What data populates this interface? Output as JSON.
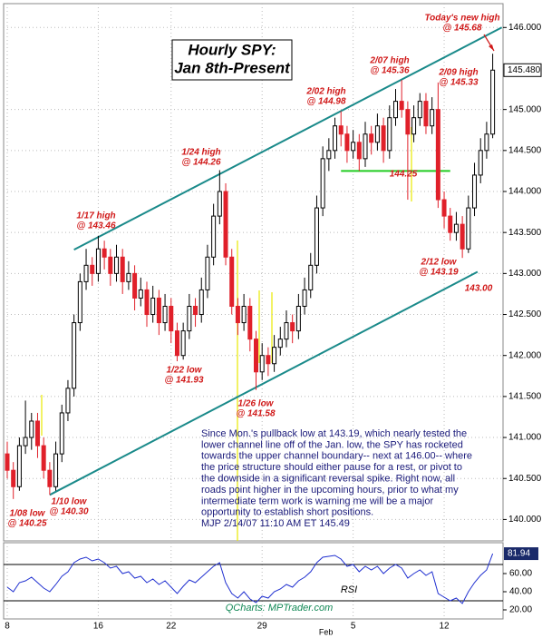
{
  "chart_data": [
    {
      "type": "candlestick",
      "title": "Hourly SPY:",
      "subtitle": "Jan 8th-Present",
      "x": [
        0,
        1,
        2,
        3,
        4,
        5,
        6,
        7,
        8,
        9,
        10,
        11,
        12,
        13,
        14,
        15,
        16,
        17,
        18,
        19,
        20,
        21,
        22,
        23,
        24,
        25,
        26,
        27,
        28,
        29,
        30,
        31,
        32,
        33,
        34,
        35,
        36,
        37,
        38,
        39,
        40,
        41,
        42,
        43,
        44,
        45,
        46,
        47,
        48,
        49,
        50,
        51,
        52,
        53,
        54,
        55,
        56,
        57,
        58,
        59,
        60,
        61,
        62,
        63,
        64,
        65,
        66,
        67,
        68,
        69,
        70,
        71,
        72,
        73,
        74,
        75,
        76,
        77,
        78,
        79,
        80
      ],
      "open": [
        140.8,
        140.6,
        140.4,
        140.9,
        141.0,
        141.2,
        140.9,
        140.6,
        140.4,
        140.8,
        141.3,
        141.6,
        142.4,
        142.9,
        143.1,
        143.0,
        143.3,
        143.2,
        143.0,
        143.2,
        142.9,
        143.0,
        142.7,
        142.8,
        142.5,
        142.7,
        142.4,
        142.6,
        142.3,
        142.0,
        142.3,
        142.6,
        142.5,
        142.8,
        143.2,
        143.7,
        144.0,
        143.2,
        142.6,
        142.4,
        142.6,
        142.2,
        141.8,
        142.0,
        141.9,
        142.1,
        142.2,
        142.4,
        142.3,
        142.6,
        142.8,
        143.1,
        143.8,
        144.4,
        144.5,
        144.8,
        144.7,
        144.5,
        144.6,
        144.4,
        144.7,
        144.6,
        144.8,
        144.5,
        144.9,
        145.1,
        145.0,
        144.7,
        144.9,
        145.1,
        144.8,
        145.0,
        143.9,
        143.7,
        143.5,
        143.6,
        143.3,
        143.8,
        144.2,
        144.5,
        144.7
      ],
      "high": [
        140.95,
        140.7,
        141.0,
        141.45,
        141.3,
        141.3,
        141.0,
        140.7,
        140.95,
        141.4,
        141.7,
        142.5,
        143.0,
        143.3,
        143.2,
        143.46,
        143.4,
        143.3,
        143.35,
        143.3,
        143.15,
        143.1,
        142.95,
        142.9,
        142.85,
        142.8,
        142.75,
        142.7,
        142.4,
        142.4,
        142.75,
        142.7,
        142.95,
        143.35,
        143.85,
        144.26,
        144.1,
        143.3,
        142.7,
        142.75,
        142.7,
        142.3,
        142.15,
        142.1,
        142.25,
        142.35,
        142.55,
        142.5,
        142.75,
        142.95,
        143.25,
        143.95,
        144.55,
        144.65,
        144.9,
        144.98,
        144.8,
        144.75,
        144.7,
        144.85,
        144.8,
        144.95,
        144.9,
        145.05,
        145.25,
        145.36,
        145.1,
        145.05,
        145.2,
        145.2,
        145.15,
        145.33,
        144.0,
        143.8,
        143.75,
        143.7,
        143.95,
        144.35,
        144.65,
        144.85,
        145.68
      ],
      "low": [
        140.5,
        140.25,
        140.35,
        140.8,
        140.85,
        140.75,
        140.5,
        140.3,
        140.35,
        140.7,
        141.2,
        141.5,
        142.3,
        142.8,
        142.85,
        142.9,
        143.05,
        142.85,
        142.9,
        142.75,
        142.8,
        142.55,
        142.6,
        142.35,
        142.4,
        142.25,
        142.3,
        142.15,
        141.93,
        141.95,
        142.2,
        142.35,
        142.4,
        142.7,
        143.1,
        143.6,
        143.1,
        142.5,
        142.25,
        142.3,
        142.05,
        141.58,
        141.7,
        141.75,
        141.8,
        142.0,
        142.1,
        142.15,
        142.2,
        142.5,
        142.7,
        143.0,
        143.7,
        144.25,
        144.4,
        144.55,
        144.35,
        144.4,
        144.25,
        144.3,
        144.45,
        144.5,
        144.35,
        144.4,
        144.8,
        144.9,
        143.9,
        144.6,
        144.8,
        144.7,
        144.7,
        143.8,
        143.55,
        143.4,
        143.4,
        143.19,
        143.25,
        143.7,
        144.1,
        144.4,
        144.65
      ],
      "close": [
        140.6,
        140.4,
        140.9,
        141.0,
        141.2,
        140.9,
        140.6,
        140.4,
        140.8,
        141.3,
        141.6,
        142.4,
        142.9,
        143.1,
        143.0,
        143.3,
        143.2,
        143.0,
        143.2,
        142.9,
        143.0,
        142.7,
        142.8,
        142.5,
        142.7,
        142.4,
        142.6,
        142.3,
        142.0,
        142.3,
        142.6,
        142.5,
        142.8,
        143.2,
        143.7,
        144.0,
        143.2,
        142.6,
        142.4,
        142.6,
        142.2,
        141.8,
        142.0,
        141.9,
        142.1,
        142.2,
        142.4,
        142.3,
        142.6,
        142.8,
        143.1,
        143.8,
        144.4,
        144.5,
        144.8,
        144.7,
        144.5,
        144.6,
        144.4,
        144.7,
        144.6,
        144.8,
        144.5,
        144.9,
        145.1,
        145.0,
        144.7,
        144.9,
        145.1,
        144.8,
        145.0,
        143.9,
        143.7,
        143.5,
        143.6,
        143.3,
        143.8,
        144.2,
        144.5,
        144.7,
        145.48
      ],
      "up_color": "#000000",
      "down_color": "#e0202a",
      "xlim": [
        0,
        82
      ],
      "xticks": [
        {
          "value": 0,
          "label": "8"
        },
        {
          "value": 15,
          "label": "16"
        },
        {
          "value": 27,
          "label": "22"
        },
        {
          "value": 42,
          "label": "29"
        },
        {
          "value": 57,
          "label": "5"
        },
        {
          "value": 72,
          "label": "12"
        }
      ],
      "x_month_label": "Feb",
      "ylim": [
        139.75,
        146.28
      ],
      "yticks": [
        {
          "value": 140,
          "label": "140.000"
        },
        {
          "value": 140.5,
          "label": "140.500"
        },
        {
          "value": 141,
          "label": "141.000"
        },
        {
          "value": 141.5,
          "label": "141.500"
        },
        {
          "value": 142,
          "label": "142.000"
        },
        {
          "value": 142.5,
          "label": "142.500"
        },
        {
          "value": 143,
          "label": "143.000"
        },
        {
          "value": 143.5,
          "label": "143.500"
        },
        {
          "value": 144,
          "label": "144.000"
        },
        {
          "value": 144.5,
          "label": "144.500"
        },
        {
          "value": 145,
          "label": "145.000"
        },
        {
          "value": 146,
          "label": "146.000"
        }
      ],
      "grid": true,
      "last_price": {
        "value": 145.48,
        "label": "145.480"
      },
      "channel_lines": [
        {
          "x": [
            11,
            81.5
          ],
          "y": [
            143.29,
            146.0
          ]
        },
        {
          "x": [
            7,
            77.5
          ],
          "y": [
            140.3,
            143.02
          ]
        }
      ],
      "channel_color": "#1a8a8a",
      "support": {
        "x": [
          55,
          73
        ],
        "y": 144.25,
        "color": "#22cc22"
      },
      "annotations": [
        {
          "lines": [
            "Today's new high",
            "@ 145.68"
          ]
        },
        {
          "lines": [
            "2/07 high",
            "@ 145.36"
          ]
        },
        {
          "lines": [
            "2/09 high",
            "@ 145.33"
          ]
        },
        {
          "lines": [
            "2/02 high",
            "@ 144.98"
          ]
        },
        {
          "lines": [
            "1/24 high",
            "@ 144.26"
          ]
        },
        {
          "lines": [
            "1/17 high",
            "@ 143.46"
          ]
        },
        {
          "lines": [
            "144.25"
          ]
        },
        {
          "lines": [
            "2/12 low",
            "@ 143.19"
          ]
        },
        {
          "lines": [
            "143.00"
          ]
        },
        {
          "lines": [
            "1/22 low",
            "@ 141.93"
          ]
        },
        {
          "lines": [
            "1/26 low",
            "@ 141.58"
          ]
        },
        {
          "lines": [
            "1/08 low",
            "@ 140.25"
          ]
        },
        {
          "lines": [
            "1/10 low",
            "@ 140.30"
          ]
        }
      ],
      "commentary": [
        "Since Mon.'s pullback low at 143.19, which nearly tested the",
        "lower channel line off of the Jan. low, the SPY has rocketed",
        "towards the upper channel boundary-- next at 146.00-- where",
        "the price structure should either pause for a rest, or pivot to",
        "the downside in a significant reversal spike. Right now, all",
        "roads point higher in the upcoming hours, prior to what my",
        "intermediate term work is warning me will be a major",
        "opportunity to establish short positions.",
        "MJP  2/14/07 11:10 AM  ET  145.49"
      ]
    },
    {
      "type": "line",
      "name": "RSI",
      "color": "#2030d0",
      "credit": "QCharts: MPTrader.com",
      "x": [
        0,
        1,
        2,
        3,
        4,
        5,
        6,
        7,
        8,
        9,
        10,
        11,
        12,
        13,
        14,
        15,
        16,
        17,
        18,
        19,
        20,
        21,
        22,
        23,
        24,
        25,
        26,
        27,
        28,
        29,
        30,
        31,
        32,
        33,
        34,
        35,
        36,
        37,
        38,
        39,
        40,
        41,
        42,
        43,
        44,
        45,
        46,
        47,
        48,
        49,
        50,
        51,
        52,
        53,
        54,
        55,
        56,
        57,
        58,
        59,
        60,
        61,
        62,
        63,
        64,
        65,
        66,
        67,
        68,
        69,
        70,
        71,
        72,
        73,
        74,
        75,
        76,
        77,
        78,
        79,
        80
      ],
      "values": [
        45,
        40,
        50,
        52,
        56,
        50,
        44,
        40,
        48,
        57,
        62,
        72,
        76,
        78,
        74,
        76,
        72,
        66,
        68,
        60,
        62,
        55,
        57,
        50,
        54,
        48,
        52,
        45,
        38,
        46,
        53,
        50,
        56,
        62,
        68,
        72,
        50,
        38,
        33,
        40,
        32,
        28,
        35,
        33,
        40,
        43,
        48,
        45,
        52,
        56,
        62,
        72,
        78,
        79,
        80,
        76,
        68,
        70,
        62,
        68,
        64,
        68,
        60,
        66,
        70,
        66,
        55,
        60,
        64,
        58,
        62,
        38,
        34,
        30,
        33,
        27,
        40,
        50,
        58,
        64,
        81.94
      ],
      "xlim": [
        0,
        82
      ],
      "ylim": [
        10,
        94
      ],
      "yticks": [
        {
          "value": 20,
          "label": "20.00"
        },
        {
          "value": 40,
          "label": "40.00"
        },
        {
          "value": 60,
          "label": "60.00"
        }
      ],
      "levels": [
        30,
        70
      ]
    }
  ]
}
